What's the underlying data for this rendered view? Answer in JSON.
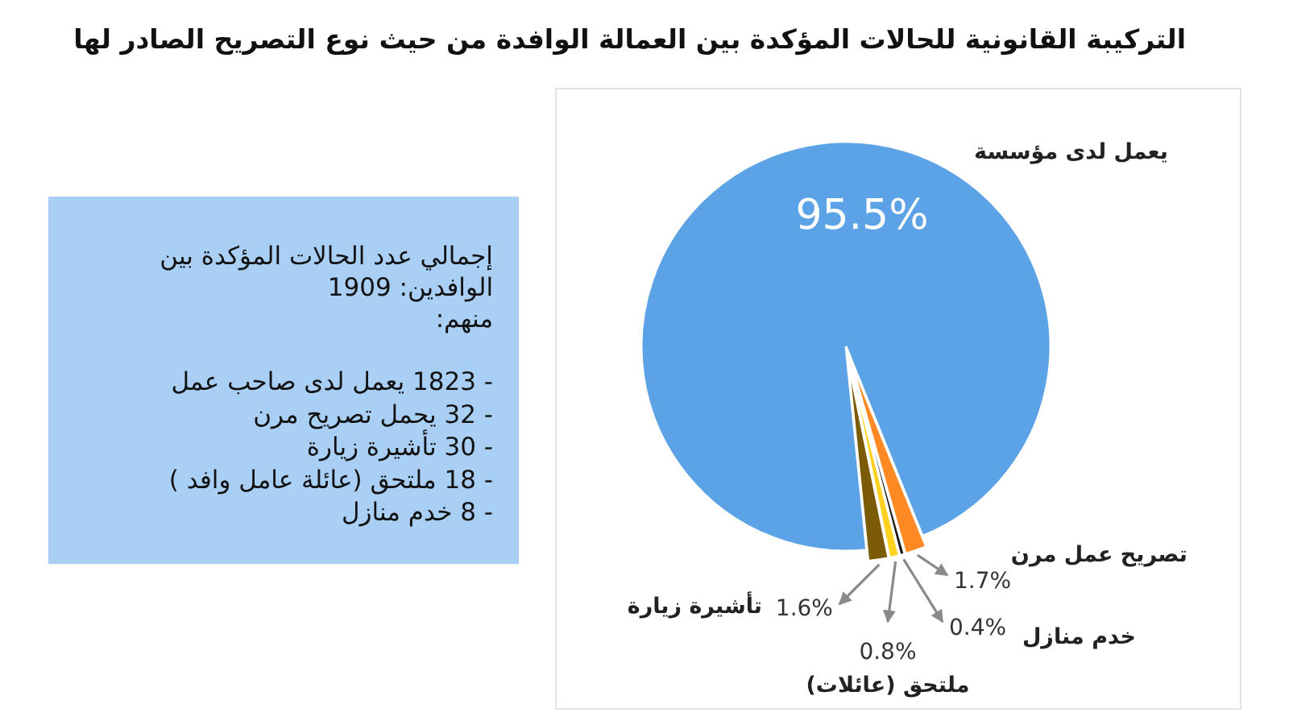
{
  "chart_data": [
    {
      "type": "pie",
      "title": "التركيبة القانونية للحالات المؤكدة بين العمالة الوافدة من حيث نوع التصريح الصادر لها",
      "categories": [
        "يعمل لدى مؤسسة",
        "تصريح عمل مرن",
        "خدم منازل",
        "ملتحق (عائلات)",
        "تأشيرة زيارة"
      ],
      "values": [
        95.5,
        1.7,
        0.4,
        0.8,
        1.6
      ],
      "colors": [
        "#5ba3e6",
        "#ff8a24",
        "#1a1a1a",
        "#ffd21f",
        "#7b5b05"
      ],
      "value_labels": [
        "95.5%",
        "1.7%",
        "0.4%",
        "0.8%",
        "1.6%"
      ]
    },
    {
      "type": "other",
      "annotations": [
        "إجمالي عدد الحالات المؤكدة بين",
        "الوافدين: 1909",
        "منهم:",
        "- 1823 يعمل لدى صاحب عمل",
        "- 32 يحمل تصريح مرن",
        "- 30 تأشيرة زيارة",
        "- 18 ملتحق (عائلة عامل وافد )",
        "- 8 خدم منازل"
      ]
    }
  ]
}
